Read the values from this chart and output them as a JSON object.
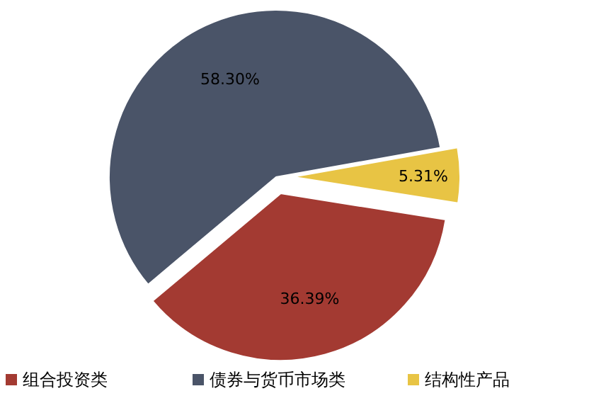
{
  "chart_data": {
    "type": "pie",
    "categories": [
      "组合投资类",
      "债券与货币市场类",
      "结构性产品"
    ],
    "values": [
      36.39,
      58.3,
      5.31
    ],
    "value_labels": [
      "36.39%",
      "58.30%",
      "5.31%"
    ],
    "colors": [
      "#a33a32",
      "#4a5468",
      "#e8c444"
    ],
    "legend": "bottom"
  }
}
